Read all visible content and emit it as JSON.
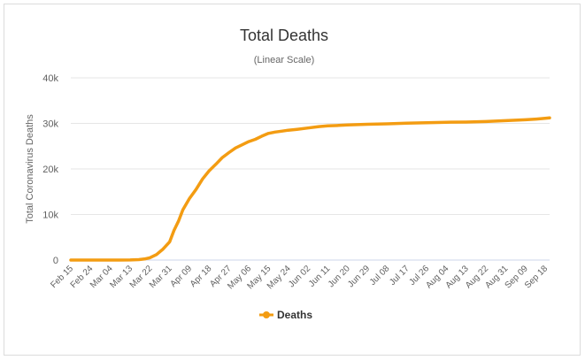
{
  "chart_data": {
    "type": "line",
    "title": "Total Deaths",
    "subtitle": "(Linear Scale)",
    "ylabel": "Total Coronavirus Deaths",
    "xlabel": "",
    "ylim": [
      0,
      40000
    ],
    "y_ticks": [
      {
        "value": 0,
        "label": "0"
      },
      {
        "value": 10000,
        "label": "10k"
      },
      {
        "value": 20000,
        "label": "20k"
      },
      {
        "value": 30000,
        "label": "30k"
      },
      {
        "value": 40000,
        "label": "40k"
      }
    ],
    "x_ticks": [
      "Feb 15",
      "Feb 24",
      "Mar 04",
      "Mar 13",
      "Mar 22",
      "Mar 31",
      "Apr 09",
      "Apr 18",
      "Apr 27",
      "May 06",
      "May 15",
      "May 24",
      "Jun 02",
      "Jun 11",
      "Jun 20",
      "Jun 29",
      "Jul 08",
      "Jul 17",
      "Jul 26",
      "Aug 04",
      "Aug 13",
      "Aug 22",
      "Aug 31",
      "Sep 09",
      "Sep 18"
    ],
    "grid": true,
    "legend": "bottom-center",
    "series": [
      {
        "name": "Deaths",
        "color": "#f39c12",
        "x": [
          "Feb 15",
          "Feb 24",
          "Mar 04",
          "Mar 08",
          "Mar 13",
          "Mar 17",
          "Mar 20",
          "Mar 22",
          "Mar 25",
          "Mar 28",
          "Mar 31",
          "Apr 02",
          "Apr 04",
          "Apr 06",
          "Apr 09",
          "Apr 12",
          "Apr 15",
          "Apr 18",
          "Apr 21",
          "Apr 24",
          "Apr 27",
          "Apr 30",
          "May 03",
          "May 06",
          "May 09",
          "May 12",
          "May 15",
          "May 18",
          "May 21",
          "May 24",
          "May 28",
          "Jun 02",
          "Jun 07",
          "Jun 11",
          "Jun 16",
          "Jun 20",
          "Jun 29",
          "Jul 08",
          "Jul 17",
          "Jul 26",
          "Aug 04",
          "Aug 13",
          "Aug 22",
          "Aug 31",
          "Sep 09",
          "Sep 14",
          "Sep 18",
          "Sep 20"
        ],
        "values": [
          0,
          0,
          0,
          5,
          10,
          100,
          280,
          500,
          1200,
          2400,
          4000,
          6500,
          8500,
          11000,
          13500,
          15500,
          17800,
          19600,
          21000,
          22500,
          23600,
          24600,
          25300,
          26000,
          26500,
          27200,
          27800,
          28100,
          28300,
          28500,
          28700,
          29000,
          29300,
          29450,
          29550,
          29650,
          29800,
          29900,
          30050,
          30150,
          30250,
          30300,
          30400,
          30600,
          30800,
          30950,
          31100,
          31200
        ]
      }
    ]
  }
}
